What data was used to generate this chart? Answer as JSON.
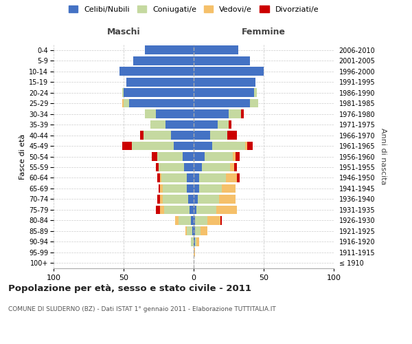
{
  "age_groups": [
    "100+",
    "95-99",
    "90-94",
    "85-89",
    "80-84",
    "75-79",
    "70-74",
    "65-69",
    "60-64",
    "55-59",
    "50-54",
    "45-49",
    "40-44",
    "35-39",
    "30-34",
    "25-29",
    "20-24",
    "15-19",
    "10-14",
    "5-9",
    "0-4"
  ],
  "birth_years": [
    "≤ 1910",
    "1911-1915",
    "1916-1920",
    "1921-1925",
    "1926-1930",
    "1931-1935",
    "1936-1940",
    "1941-1945",
    "1946-1950",
    "1951-1955",
    "1956-1960",
    "1961-1965",
    "1966-1970",
    "1971-1975",
    "1976-1980",
    "1981-1985",
    "1986-1990",
    "1991-1995",
    "1996-2000",
    "2001-2005",
    "2006-2010"
  ],
  "male": {
    "celibi": [
      0,
      0,
      0,
      1,
      2,
      3,
      4,
      5,
      5,
      7,
      8,
      14,
      16,
      20,
      27,
      46,
      50,
      48,
      53,
      43,
      35
    ],
    "coniugati": [
      0,
      0,
      2,
      4,
      9,
      18,
      18,
      17,
      18,
      18,
      18,
      30,
      20,
      11,
      8,
      4,
      1,
      0,
      0,
      0,
      0
    ],
    "vedovi": [
      0,
      0,
      0,
      1,
      2,
      3,
      2,
      2,
      1,
      0,
      0,
      0,
      0,
      0,
      0,
      1,
      0,
      0,
      0,
      0,
      0
    ],
    "divorziati": [
      0,
      0,
      0,
      0,
      0,
      3,
      2,
      1,
      2,
      2,
      4,
      7,
      2,
      0,
      0,
      0,
      0,
      0,
      0,
      0,
      0
    ]
  },
  "female": {
    "nubili": [
      0,
      0,
      1,
      1,
      1,
      2,
      3,
      4,
      4,
      6,
      8,
      13,
      12,
      17,
      25,
      40,
      43,
      44,
      50,
      40,
      32
    ],
    "coniugate": [
      0,
      0,
      1,
      4,
      9,
      14,
      15,
      16,
      19,
      20,
      20,
      24,
      12,
      8,
      9,
      6,
      2,
      0,
      0,
      0,
      0
    ],
    "vedove": [
      0,
      1,
      2,
      5,
      9,
      15,
      12,
      10,
      8,
      3,
      2,
      1,
      0,
      0,
      0,
      0,
      0,
      0,
      0,
      0,
      0
    ],
    "divorziate": [
      0,
      0,
      0,
      0,
      1,
      0,
      0,
      0,
      2,
      2,
      3,
      4,
      7,
      2,
      2,
      0,
      0,
      0,
      0,
      0,
      0
    ]
  },
  "colors": {
    "celibi_nubili": "#4472c4",
    "coniugati": "#c5d9a0",
    "vedovi": "#f5c06a",
    "divorziati": "#cc0000"
  },
  "xlim": 100,
  "title": "Popolazione per età, sesso e stato civile - 2011",
  "subtitle": "COMUNE DI SLUDERNO (BZ) - Dati ISTAT 1° gennaio 2011 - Elaborazione TUTTITALIA.IT",
  "ylabel_left": "Fasce di età",
  "ylabel_right": "Anni di nascita",
  "legend_labels": [
    "Celibi/Nubili",
    "Coniugati/e",
    "Vedovi/e",
    "Divorziati/e"
  ],
  "male_label": "Maschi",
  "female_label": "Femmine",
  "background_color": "#ffffff",
  "grid_color": "#cccccc"
}
